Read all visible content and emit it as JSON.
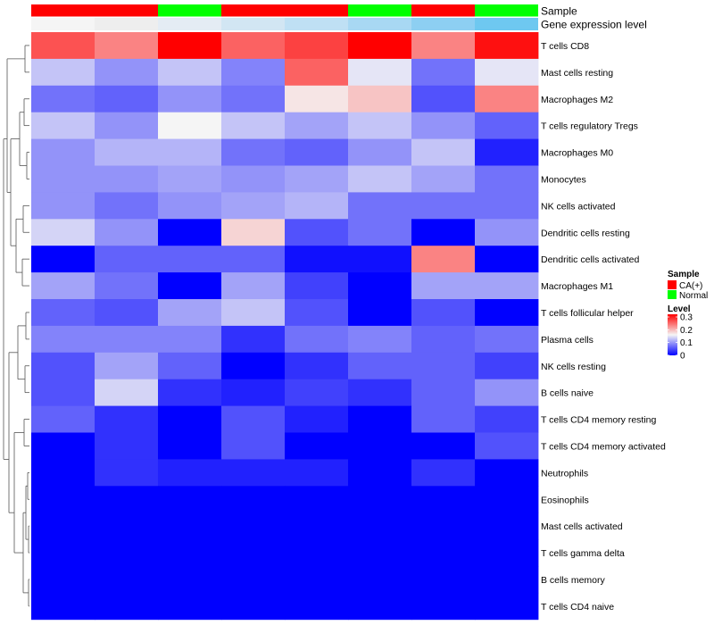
{
  "chart_data": {
    "type": "heatmap",
    "title": "",
    "annotation_rows": [
      {
        "name": "Sample",
        "values": [
          "CA(+)",
          "CA(+)",
          "Normal",
          "CA(+)",
          "CA(+)",
          "Normal",
          "CA(+)",
          "Normal"
        ]
      },
      {
        "name": "Gene expression level",
        "values": [
          "#f5f5f5",
          "#eeeeee",
          "#e4ecf4",
          "#d2e6f3",
          "#bfe0f4",
          "#a8d8f3",
          "#8dcff2",
          "#6ec8f0"
        ]
      }
    ],
    "rows": [
      "T cells CD8",
      "Mast cells resting",
      "Macrophages M2",
      "T cells regulatory  Tregs",
      "Macrophages M0",
      "Monocytes",
      "NK cells activated",
      "Dendritic cells resting",
      "Dendritic cells activated",
      "Macrophages M1",
      "T cells follicular helper",
      "Plasma cells",
      "NK cells resting",
      "B cells naive",
      "T cells CD4 memory resting",
      "T cells CD4 memory activated",
      "Neutrophils",
      "Eosinophils",
      "Mast cells activated",
      "T cells gamma delta",
      "B cells memory",
      "T cells CD4 naive"
    ],
    "values": [
      [
        0.25,
        0.22,
        0.3,
        0.24,
        0.26,
        0.3,
        0.22,
        0.29
      ],
      [
        0.12,
        0.09,
        0.12,
        0.08,
        0.24,
        0.14,
        0.07,
        0.14
      ],
      [
        0.07,
        0.06,
        0.09,
        0.07,
        0.16,
        0.18,
        0.05,
        0.22
      ],
      [
        0.12,
        0.09,
        0.15,
        0.12,
        0.1,
        0.12,
        0.09,
        0.06
      ],
      [
        0.09,
        0.11,
        0.11,
        0.07,
        0.06,
        0.09,
        0.12,
        0.02
      ],
      [
        0.09,
        0.09,
        0.1,
        0.09,
        0.1,
        0.12,
        0.1,
        0.07
      ],
      [
        0.09,
        0.07,
        0.09,
        0.1,
        0.11,
        0.07,
        0.07,
        0.07
      ],
      [
        0.13,
        0.09,
        0.0,
        0.17,
        0.05,
        0.07,
        0.0,
        0.09
      ],
      [
        0.0,
        0.06,
        0.06,
        0.06,
        0.01,
        0.01,
        0.22,
        0.0
      ],
      [
        0.1,
        0.07,
        0.0,
        0.1,
        0.04,
        0.0,
        0.1,
        0.1
      ],
      [
        0.06,
        0.05,
        0.1,
        0.12,
        0.05,
        0.0,
        0.05,
        0.0
      ],
      [
        0.08,
        0.08,
        0.08,
        0.03,
        0.07,
        0.08,
        0.06,
        0.07
      ],
      [
        0.05,
        0.1,
        0.06,
        0.0,
        0.03,
        0.06,
        0.06,
        0.04
      ],
      [
        0.05,
        0.13,
        0.03,
        0.02,
        0.04,
        0.03,
        0.06,
        0.09
      ],
      [
        0.06,
        0.03,
        0.0,
        0.05,
        0.02,
        0.0,
        0.06,
        0.04
      ],
      [
        0.0,
        0.03,
        0.0,
        0.05,
        0.0,
        0.0,
        0.0,
        0.05
      ],
      [
        0.0,
        0.03,
        0.02,
        0.02,
        0.02,
        0.0,
        0.03,
        0.0
      ],
      [
        0.0,
        0.0,
        0.0,
        0.0,
        0.0,
        0.0,
        0.0,
        0.0
      ],
      [
        0.0,
        0.0,
        0.0,
        0.0,
        0.0,
        0.0,
        0.0,
        0.0
      ],
      [
        0.0,
        0.0,
        0.0,
        0.0,
        0.0,
        0.0,
        0.0,
        0.0
      ],
      [
        0.0,
        0.0,
        0.0,
        0.0,
        0.0,
        0.0,
        0.0,
        0.0
      ],
      [
        0.0,
        0.0,
        0.0,
        0.0,
        0.0,
        0.0,
        0.0,
        0.0
      ]
    ],
    "color_scale": {
      "min": 0,
      "max": 0.3,
      "colors": [
        "#0000ff",
        "#f5f5f5",
        "#ff0000"
      ]
    },
    "legend": {
      "sample": {
        "title": "Sample",
        "entries": [
          {
            "label": "CA(+)",
            "color": "#ff0000"
          },
          {
            "label": "Normal",
            "color": "#00ff00"
          }
        ]
      },
      "level": {
        "title": "Level",
        "ticks": [
          "0.3",
          "0.2",
          "0.1",
          "0"
        ]
      }
    },
    "legend_position": "right",
    "row_dendrogram": true
  }
}
